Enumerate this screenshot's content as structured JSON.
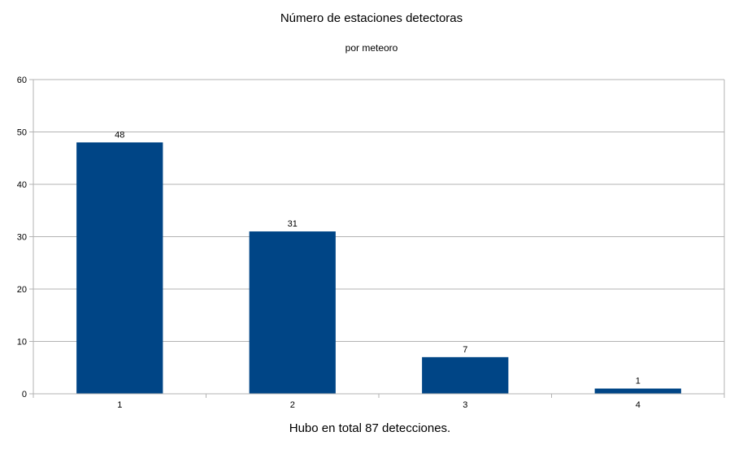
{
  "chart_data": {
    "type": "bar",
    "title": "Número de estaciones detectoras",
    "subtitle": "por meteoro",
    "xlabel": "Hubo en total 87 detecciones.",
    "ylabel": "",
    "categories": [
      "1",
      "2",
      "3",
      "4"
    ],
    "values": [
      48,
      31,
      7,
      1
    ],
    "ylim": [
      0,
      60
    ],
    "yticks": [
      0,
      10,
      20,
      30,
      40,
      50,
      60
    ],
    "grid": true,
    "legend": "none",
    "bar_color": "#004586",
    "grid_color": "#b3b3b3"
  }
}
